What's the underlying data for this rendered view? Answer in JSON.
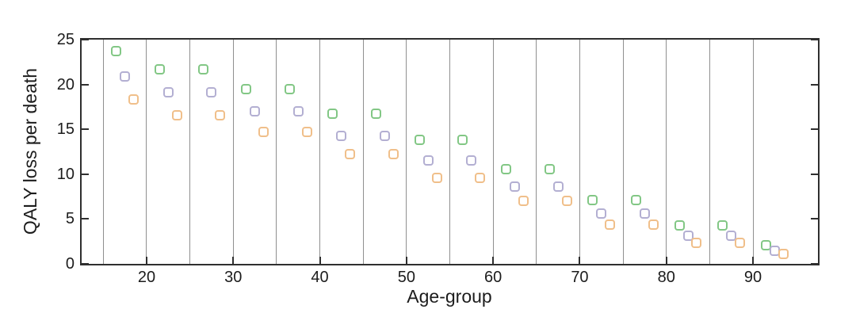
{
  "figure": {
    "background": "#ffffff",
    "axis_color": "#2f2f2f",
    "gridline_color": "#8f8f8f",
    "text_color": "#1c1c1c"
  },
  "chart_data": {
    "type": "scatter",
    "title": "",
    "xlabel": "Age-group",
    "ylabel": "QALY loss per death",
    "xlim": [
      12.5,
      97.5
    ],
    "ylim": [
      0,
      25
    ],
    "xticks": [
      20,
      30,
      40,
      50,
      60,
      70,
      80,
      90
    ],
    "yticks": [
      0,
      5,
      10,
      15,
      20,
      25
    ],
    "grid": "vertical-band-separators",
    "band_separator_x": [
      15,
      20,
      25,
      30,
      35,
      40,
      45,
      50,
      55,
      60,
      65,
      70,
      75,
      80,
      85,
      90
    ],
    "age_group_bands": [
      "15-20",
      "20-25",
      "25-30",
      "30-35",
      "35-40",
      "40-45",
      "45-50",
      "50-55",
      "55-60",
      "60-65",
      "65-70",
      "70-75",
      "75-80",
      "80-85",
      "85-90",
      "90-95"
    ],
    "marker": "open-rounded-square",
    "legend": "none",
    "series": [
      {
        "name": "green-squares",
        "color": "#82c785",
        "x": [
          16.5,
          21.5,
          26.5,
          31.5,
          36.5,
          41.5,
          46.5,
          51.5,
          56.5,
          61.5,
          66.5,
          71.5,
          76.5,
          81.5,
          86.5,
          91.5
        ],
        "values": [
          23.7,
          21.7,
          21.7,
          19.5,
          19.5,
          16.7,
          16.7,
          13.8,
          13.8,
          10.6,
          10.6,
          7.1,
          7.1,
          4.3,
          4.3,
          2.1
        ]
      },
      {
        "name": "purple-squares",
        "color": "#b3afd2",
        "x": [
          17.5,
          22.5,
          27.5,
          32.5,
          37.5,
          42.5,
          47.5,
          52.5,
          57.5,
          62.5,
          67.5,
          72.5,
          77.5,
          82.5,
          87.5,
          92.5
        ],
        "values": [
          20.9,
          19.1,
          19.1,
          17.0,
          17.0,
          14.3,
          14.3,
          11.5,
          11.5,
          8.6,
          8.6,
          5.6,
          5.6,
          3.1,
          3.1,
          1.5
        ]
      },
      {
        "name": "orange-squares",
        "color": "#f0bf8a",
        "x": [
          18.5,
          23.5,
          28.5,
          33.5,
          38.5,
          43.5,
          48.5,
          53.5,
          58.5,
          63.5,
          68.5,
          73.5,
          78.5,
          83.5,
          88.5,
          93.5
        ],
        "values": [
          18.3,
          16.6,
          16.6,
          14.7,
          14.7,
          12.2,
          12.2,
          9.6,
          9.6,
          7.0,
          7.0,
          4.4,
          4.4,
          2.3,
          2.3,
          1.1
        ]
      }
    ]
  }
}
